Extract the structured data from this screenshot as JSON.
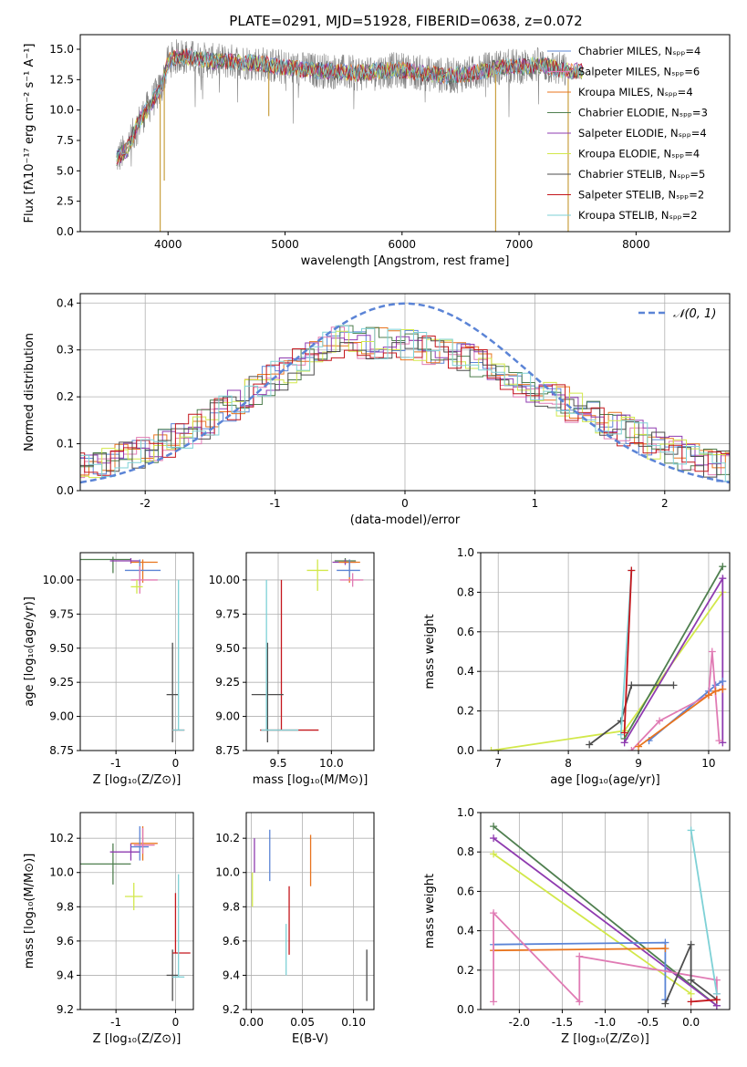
{
  "figure": {
    "title": "PLATE=0291, MJD=51928, FIBERID=0638, z=0.072"
  },
  "colors": {
    "Chabrier MILES": "#5b84d6",
    "Salpeter MILES": "#e07bb4",
    "Kroupa MILES": "#e8741e",
    "Chabrier ELODIE": "#4f7f4f",
    "Salpeter ELODIE": "#8f3bb0",
    "Kroupa ELODIE": "#d2e84a",
    "Chabrier STELIB": "#4d4d4d",
    "Salpeter STELIB": "#c4161c",
    "Kroupa STELIB": "#7ed1d6",
    "observed": "#808080",
    "normal": "#5b84d6"
  },
  "chart_data": [
    {
      "id": "spectrum",
      "type": "line",
      "title": "PLATE=0291, MJD=51928, FIBERID=0638, z=0.072",
      "xlabel": "wavelength [Angstrom, rest frame]",
      "ylabel": "Flux [fλ10⁻¹⁷ erg cm⁻² s⁻¹ A⁻¹]",
      "xlim": [
        3250,
        8800
      ],
      "ylim": [
        0,
        16.2
      ],
      "xticks": [
        4000,
        5000,
        6000,
        7000,
        8000
      ],
      "yticks": [
        0.0,
        2.5,
        5.0,
        7.5,
        10.0,
        12.5,
        15.0
      ],
      "grid": false,
      "legend_placement": "right",
      "legend": [
        "Chabrier MILES, Nₛₚₚ=4",
        "Salpeter MILES, Nₛₚₚ=6",
        "Kroupa MILES, Nₛₚₚ=4",
        "Chabrier ELODIE, Nₛₚₚ=3",
        "Salpeter ELODIE, Nₛₚₚ=4",
        "Kroupa ELODIE, Nₛₚₚ=4",
        "Chabrier STELIB, Nₛₚₚ=5",
        "Salpeter STELIB, Nₛₚₚ=2",
        "Kroupa STELIB, Nₛₚₚ=2"
      ],
      "legend_series": [
        "Chabrier MILES",
        "Salpeter MILES",
        "Kroupa MILES",
        "Chabrier ELODIE",
        "Salpeter ELODIE",
        "Kroupa ELODIE",
        "Chabrier STELIB",
        "Salpeter STELIB",
        "Kroupa STELIB"
      ],
      "model_series": [
        "Chabrier MILES",
        "Salpeter MILES",
        "Kroupa MILES",
        "Chabrier ELODIE",
        "Salpeter ELODIE",
        "Kroupa ELODIE",
        "Chabrier STELIB",
        "Salpeter STELIB",
        "Kroupa STELIB"
      ],
      "continuum": {
        "x": [
          3560,
          3650,
          3750,
          3850,
          3950,
          4000,
          4100,
          4200,
          4400,
          4600,
          4800,
          5000,
          5200,
          5400,
          5600,
          5800,
          6000,
          6200,
          6400,
          6600,
          6800,
          7000,
          7200,
          7400,
          7500
        ],
        "y": [
          6.0,
          6.8,
          9.0,
          10.5,
          12.0,
          14.0,
          14.5,
          14.3,
          14.0,
          14.0,
          13.8,
          13.5,
          13.3,
          13.2,
          13.0,
          13.2,
          13.3,
          13.0,
          12.8,
          13.0,
          13.5,
          13.6,
          13.7,
          13.2,
          13.0
        ]
      },
      "observed_xrange": [
        3560,
        7400
      ],
      "dips": [
        {
          "x": 3933,
          "y": 0.0
        },
        {
          "x": 3968,
          "y": 4.2
        },
        {
          "x": 4861,
          "y": 9.5
        },
        {
          "x": 6800,
          "y": 0.0
        },
        {
          "x": 7420,
          "y": 0.0
        }
      ]
    },
    {
      "id": "residuals",
      "type": "step",
      "xlabel": "(data-model)/error",
      "ylabel": "Normed distribution",
      "xlim": [
        -2.5,
        2.5
      ],
      "ylim": [
        0,
        0.42
      ],
      "xticks": [
        -2,
        -1,
        0,
        1,
        2
      ],
      "yticks": [
        0.0,
        0.1,
        0.2,
        0.3,
        0.4
      ],
      "grid": true,
      "legend_placement": "top-right",
      "legend": [
        "𝒩(0, 1)"
      ],
      "bin_width": 0.1,
      "reference_curve": {
        "type": "normal",
        "mean": 0,
        "sigma": 1
      },
      "histogram_envelope": {
        "x": [
          -2.5,
          -2.0,
          -1.5,
          -1.0,
          -0.5,
          0.0,
          0.5,
          1.0,
          1.5,
          2.0,
          2.5
        ],
        "y": [
          0.05,
          0.08,
          0.15,
          0.24,
          0.32,
          0.31,
          0.28,
          0.22,
          0.15,
          0.09,
          0.05
        ]
      },
      "series": [
        "Chabrier MILES",
        "Salpeter MILES",
        "Kroupa MILES",
        "Chabrier ELODIE",
        "Salpeter ELODIE",
        "Kroupa ELODIE",
        "Chabrier STELIB",
        "Salpeter STELIB",
        "Kroupa STELIB"
      ]
    },
    {
      "id": "age_vs_Z",
      "type": "errorbar",
      "xlabel": "Z [log₁₀(Z/Z⊙)]",
      "ylabel": "age  [log₁₀(age/yr)]",
      "xlim": [
        -1.6,
        0.3
      ],
      "ylim": [
        8.75,
        10.2
      ],
      "xticks": [
        -1,
        0
      ],
      "yticks": [
        8.75,
        9.0,
        9.25,
        9.5,
        9.75,
        10.0
      ],
      "grid": true,
      "points": [
        {
          "series": "Chabrier ELODIE",
          "x": -1.05,
          "xerr": [
            0.55,
            0.3
          ],
          "y": 10.15,
          "yerr": [
            0.1,
            0.02
          ]
        },
        {
          "series": "Salpeter ELODIE",
          "x": -0.75,
          "xerr": [
            0.35,
            0.15
          ],
          "y": 10.14,
          "yerr": [
            0.02,
            0.02
          ]
        },
        {
          "series": "Kroupa MILES",
          "x": -0.55,
          "xerr": [
            0.2,
            0.25
          ],
          "y": 10.13,
          "yerr": [
            0.15,
            0.02
          ]
        },
        {
          "series": "Chabrier MILES",
          "x": -0.6,
          "xerr": [
            0.25,
            0.35
          ],
          "y": 10.07,
          "yerr": [
            0.1,
            0.08
          ]
        },
        {
          "series": "Salpeter MILES",
          "x": -0.6,
          "xerr": [
            0.15,
            0.3
          ],
          "y": 10.0,
          "yerr": [
            0.1,
            0.1
          ]
        },
        {
          "series": "Kroupa ELODIE",
          "x": -0.65,
          "xerr": [
            0.1,
            0.1
          ],
          "y": 9.95,
          "yerr": [
            0.05,
            0.05
          ]
        },
        {
          "series": "Chabrier STELIB",
          "x": -0.05,
          "xerr": [
            0.1,
            0.1
          ],
          "y": 9.16,
          "yerr": [
            0.35,
            0.38
          ]
        },
        {
          "series": "Salpeter STELIB",
          "x": 0.05,
          "xerr": [
            0.1,
            0.1
          ],
          "y": 8.9,
          "yerr": [
            0.0,
            0.0
          ]
        },
        {
          "series": "Kroupa STELIB",
          "x": 0.05,
          "xerr": [
            0.1,
            0.1
          ],
          "y": 8.9,
          "yerr": [
            0.0,
            1.1
          ]
        }
      ]
    },
    {
      "id": "age_vs_mass",
      "type": "errorbar",
      "xlabel": "mass [log₁₀(M/M⊙)]",
      "ylabel": "",
      "xlim": [
        9.2,
        10.4
      ],
      "ylim": [
        8.75,
        10.2
      ],
      "xticks": [
        9.5,
        10.0
      ],
      "yticks": [
        8.75,
        9.0,
        9.25,
        9.5,
        9.75,
        10.0
      ],
      "grid": true,
      "points": [
        {
          "series": "Kroupa ELODIE",
          "x": 9.87,
          "xerr": [
            0.1,
            0.1
          ],
          "y": 10.07,
          "yerr": [
            0.15,
            0.08
          ]
        },
        {
          "series": "Chabrier ELODIE",
          "x": 10.13,
          "xerr": [
            0.1,
            0.1
          ],
          "y": 10.14,
          "yerr": [
            0.02,
            0.02
          ]
        },
        {
          "series": "Salpeter ELODIE",
          "x": 10.13,
          "xerr": [
            0.12,
            0.1
          ],
          "y": 10.13,
          "yerr": [
            0.02,
            0.02
          ]
        },
        {
          "series": "Kroupa MILES",
          "x": 10.17,
          "xerr": [
            0.1,
            0.1
          ],
          "y": 10.13,
          "yerr": [
            0.15,
            0.02
          ]
        },
        {
          "series": "Chabrier MILES",
          "x": 10.17,
          "xerr": [
            0.12,
            0.1
          ],
          "y": 10.07,
          "yerr": [
            0.05,
            0.08
          ]
        },
        {
          "series": "Salpeter MILES",
          "x": 10.2,
          "xerr": [
            0.12,
            0.1
          ],
          "y": 10.0,
          "yerr": [
            0.05,
            0.05
          ]
        },
        {
          "series": "Salpeter STELIB",
          "x": 9.53,
          "xerr": [
            0.2,
            0.35
          ],
          "y": 8.9,
          "yerr": [
            0.0,
            1.1
          ]
        },
        {
          "series": "Chabrier STELIB",
          "x": 9.4,
          "xerr": [
            0.15,
            0.15
          ],
          "y": 9.16,
          "yerr": [
            0.35,
            0.38
          ]
        },
        {
          "series": "Kroupa STELIB",
          "x": 9.39,
          "xerr": [
            0.05,
            0.3
          ],
          "y": 8.9,
          "yerr": [
            0.0,
            1.1
          ]
        }
      ]
    },
    {
      "id": "weight_vs_age",
      "type": "line",
      "xlabel": "age  [log₁₀(age/yr)]",
      "ylabel": "mass weight",
      "xlim": [
        6.75,
        10.3
      ],
      "ylim": [
        0,
        1.0
      ],
      "xticks": [
        7,
        8,
        9,
        10
      ],
      "yticks": [
        0.0,
        0.2,
        0.4,
        0.6,
        0.8,
        1.0
      ],
      "grid": true,
      "series": [
        {
          "name": "Kroupa ELODIE",
          "x": [
            6.9,
            8.8,
            10.2
          ],
          "y": [
            0.0,
            0.1,
            0.8
          ]
        },
        {
          "name": "Chabrier ELODIE",
          "x": [
            8.8,
            10.2
          ],
          "y": [
            0.06,
            0.93
          ]
        },
        {
          "name": "Salpeter ELODIE",
          "x": [
            8.8,
            10.2,
            10.2
          ],
          "y": [
            0.04,
            0.87,
            0.04
          ]
        },
        {
          "name": "Chabrier STELIB",
          "x": [
            8.3,
            8.75,
            8.9,
            9.5
          ],
          "y": [
            0.03,
            0.15,
            0.33,
            0.33
          ]
        },
        {
          "name": "Kroupa STELIB",
          "x": [
            8.75,
            8.9
          ],
          "y": [
            0.08,
            0.91
          ]
        },
        {
          "name": "Salpeter STELIB",
          "x": [
            8.8,
            8.9
          ],
          "y": [
            0.09,
            0.91
          ]
        },
        {
          "name": "Chabrier MILES",
          "x": [
            9.15,
            10.0,
            10.1,
            10.2
          ],
          "y": [
            0.05,
            0.3,
            0.33,
            0.35
          ]
        },
        {
          "name": "Salpeter MILES",
          "x": [
            8.9,
            9.3,
            10.0,
            10.05,
            10.15
          ],
          "y": [
            0.0,
            0.15,
            0.28,
            0.5,
            0.05
          ]
        },
        {
          "name": "Kroupa MILES",
          "x": [
            9.0,
            10.0,
            10.1,
            10.2
          ],
          "y": [
            0.02,
            0.28,
            0.3,
            0.31
          ]
        }
      ]
    },
    {
      "id": "mass_vs_Z",
      "type": "errorbar",
      "xlabel": "Z [log₁₀(Z/Z⊙)]",
      "ylabel": "mass [log₁₀(M/M⊙)]",
      "xlim": [
        -1.6,
        0.3
      ],
      "ylim": [
        9.2,
        10.35
      ],
      "xticks": [
        -1,
        0
      ],
      "yticks": [
        9.2,
        9.4,
        9.6,
        9.8,
        10.0,
        10.2
      ],
      "grid": true,
      "points": [
        {
          "series": "Chabrier ELODIE",
          "x": -1.05,
          "xerr": [
            0.55,
            0.3
          ],
          "y": 10.05,
          "yerr": [
            0.12,
            0.12
          ]
        },
        {
          "series": "Salpeter ELODIE",
          "x": -0.75,
          "xerr": [
            0.35,
            0.15
          ],
          "y": 10.12,
          "yerr": [
            0.05,
            0.05
          ]
        },
        {
          "series": "Kroupa MILES",
          "x": -0.55,
          "xerr": [
            0.2,
            0.25
          ],
          "y": 10.17,
          "yerr": [
            0.1,
            0.1
          ]
        },
        {
          "series": "Chabrier MILES",
          "x": -0.6,
          "xerr": [
            0.15,
            0.15
          ],
          "y": 10.15,
          "yerr": [
            0.08,
            0.12
          ]
        },
        {
          "series": "Salpeter MILES",
          "x": -0.55,
          "xerr": [
            0.15,
            0.2
          ],
          "y": 10.16,
          "yerr": [
            0.05,
            0.1
          ]
        },
        {
          "series": "Kroupa ELODIE",
          "x": -0.7,
          "xerr": [
            0.15,
            0.15
          ],
          "y": 9.86,
          "yerr": [
            0.08,
            0.08
          ]
        },
        {
          "series": "Chabrier STELIB",
          "x": -0.05,
          "xerr": [
            0.1,
            0.1
          ],
          "y": 9.4,
          "yerr": [
            0.15,
            0.15
          ]
        },
        {
          "series": "Salpeter STELIB",
          "x": 0.0,
          "xerr": [
            0.05,
            0.25
          ],
          "y": 9.53,
          "yerr": [
            0.0,
            0.35
          ]
        },
        {
          "series": "Kroupa STELIB",
          "x": 0.05,
          "xerr": [
            0.1,
            0.1
          ],
          "y": 9.39,
          "yerr": [
            0.0,
            0.6
          ]
        }
      ]
    },
    {
      "id": "mass_vs_EBV",
      "type": "errorbar",
      "xlabel": "E(B-V)",
      "ylabel": "",
      "xlim": [
        -0.005,
        0.12
      ],
      "ylim": [
        9.2,
        10.35
      ],
      "xticks": [
        0.0,
        0.05,
        0.1
      ],
      "yticks": [
        9.2,
        9.4,
        9.6,
        9.8,
        10.0,
        10.2
      ],
      "grid": true,
      "points": [
        {
          "series": "Salpeter ELODIE",
          "x": 0.003,
          "xerr": [
            0,
            0
          ],
          "y": 10.1,
          "yerr": [
            0.1,
            0.1
          ]
        },
        {
          "series": "Kroupa ELODIE",
          "x": 0.001,
          "xerr": [
            0,
            0
          ],
          "y": 9.9,
          "yerr": [
            0.1,
            0.1
          ]
        },
        {
          "series": "Chabrier MILES",
          "x": 0.018,
          "xerr": [
            0,
            0
          ],
          "y": 10.1,
          "yerr": [
            0.15,
            0.15
          ]
        },
        {
          "series": "Kroupa MILES",
          "x": 0.058,
          "xerr": [
            0,
            0
          ],
          "y": 10.07,
          "yerr": [
            0.15,
            0.15
          ]
        },
        {
          "series": "Salpeter STELIB",
          "x": 0.037,
          "xerr": [
            0,
            0
          ],
          "y": 9.72,
          "yerr": [
            0.2,
            0.2
          ]
        },
        {
          "series": "Kroupa STELIB",
          "x": 0.034,
          "xerr": [
            0,
            0
          ],
          "y": 9.55,
          "yerr": [
            0.15,
            0.15
          ]
        },
        {
          "series": "Chabrier STELIB",
          "x": 0.113,
          "xerr": [
            0,
            0
          ],
          "y": 9.4,
          "yerr": [
            0.15,
            0.15
          ]
        }
      ]
    },
    {
      "id": "weight_vs_Z",
      "type": "line",
      "xlabel": "Z [log₁₀(Z/Z⊙)]",
      "ylabel": "mass weight",
      "xlim": [
        -2.45,
        0.45
      ],
      "ylim": [
        0,
        1.0
      ],
      "xticks": [
        -2.0,
        -1.5,
        -1.0,
        -0.5,
        0.0
      ],
      "yticks": [
        0.0,
        0.2,
        0.4,
        0.6,
        0.8,
        1.0
      ],
      "grid": true,
      "series": [
        {
          "name": "Chabrier ELODIE",
          "x": [
            -2.3,
            0.3
          ],
          "y": [
            0.93,
            0.02
          ]
        },
        {
          "name": "Salpeter ELODIE",
          "x": [
            -2.3,
            0.3
          ],
          "y": [
            0.87,
            0.02
          ]
        },
        {
          "name": "Kroupa ELODIE",
          "x": [
            -2.3,
            0.0
          ],
          "y": [
            0.79,
            0.08
          ]
        },
        {
          "name": "Chabrier MILES",
          "x": [
            -2.3,
            -0.3,
            -0.3
          ],
          "y": [
            0.33,
            0.34,
            0.05
          ]
        },
        {
          "name": "Kroupa MILES",
          "x": [
            -2.3,
            -0.3
          ],
          "y": [
            0.3,
            0.31
          ]
        },
        {
          "name": "Salpeter MILES",
          "x": [
            -2.3,
            -2.3,
            -1.3,
            -1.3,
            0.3,
            0.3
          ],
          "y": [
            0.04,
            0.49,
            0.04,
            0.27,
            0.15,
            0.08
          ]
        },
        {
          "name": "Chabrier STELIB",
          "x": [
            -0.3,
            0.0,
            0.0,
            0.3
          ],
          "y": [
            0.03,
            0.33,
            0.15,
            0.05
          ]
        },
        {
          "name": "Kroupa STELIB",
          "x": [
            0.0,
            0.3
          ],
          "y": [
            0.91,
            0.08
          ]
        },
        {
          "name": "Salpeter STELIB",
          "x": [
            0.0,
            0.3
          ],
          "y": [
            0.04,
            0.05
          ]
        }
      ]
    }
  ]
}
